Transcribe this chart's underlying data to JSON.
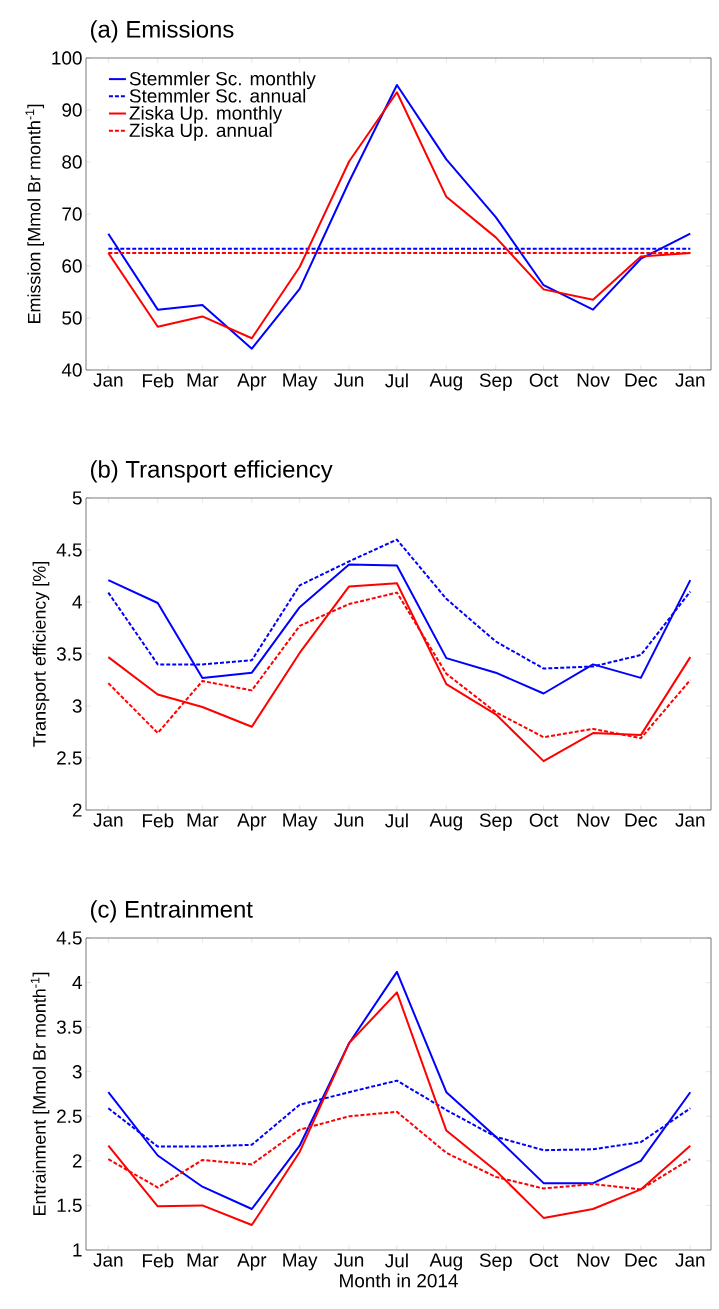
{
  "chart_data": [
    {
      "type": "line",
      "title": "(a) Emissions",
      "ylabel": "Emission [Mmol Br month$^{-1}$]",
      "x": [
        "2014-01-01",
        "2014-02-01",
        "2014-03-01",
        "2014-04-01",
        "2014-05-01",
        "2014-06-01",
        "2014-07-01",
        "2014-08-01",
        "2014-09-01",
        "2014-10-01",
        "2014-11-01",
        "2014-12-01",
        "2015-01-01"
      ],
      "xlim": [
        "2013-12-18",
        "2015-01-14"
      ],
      "xticks": [
        {
          "value": "2014-01-01",
          "label": "Jan"
        },
        {
          "value": "2014-02-01",
          "label": "Feb"
        },
        {
          "value": "2014-03-01",
          "label": "Mar"
        },
        {
          "value": "2014-04-01",
          "label": "Apr"
        },
        {
          "value": "2014-05-01",
          "label": "May"
        },
        {
          "value": "2014-06-01",
          "label": "Jun"
        },
        {
          "value": "2014-07-01",
          "label": "Jul"
        },
        {
          "value": "2014-08-01",
          "label": "Aug"
        },
        {
          "value": "2014-09-01",
          "label": "Sep"
        },
        {
          "value": "2014-10-01",
          "label": "Oct"
        },
        {
          "value": "2014-11-01",
          "label": "Nov"
        },
        {
          "value": "2014-12-01",
          "label": "Dec"
        },
        {
          "value": "2015-01-01",
          "label": "Jan"
        }
      ],
      "ylim": [
        40,
        100
      ],
      "yticks": [
        40,
        50,
        60,
        70,
        80,
        90,
        100
      ],
      "grid": false,
      "legend": "top left",
      "series": [
        {
          "name": "Stemmler Sc. monthly",
          "color": "#0000ff",
          "line_style": "solid",
          "values": [
            66.2,
            51.6,
            52.5,
            44.1,
            55.6,
            76.2,
            94.8,
            80.5,
            69.4,
            56.3,
            51.6,
            61.4,
            66.2
          ]
        },
        {
          "name": "Stemmler Sc. annual",
          "color": "#0000ff",
          "line_style": "dashed",
          "values": [
            63.3,
            63.3,
            63.3,
            63.3,
            63.3,
            63.3,
            63.3,
            63.3,
            63.3,
            63.3,
            63.3,
            63.3,
            63.3
          ]
        },
        {
          "name": "Ziska Up. monthly",
          "color": "#ff0000",
          "line_style": "solid",
          "values": [
            62.5,
            48.3,
            50.3,
            46.1,
            59.8,
            80.1,
            93.4,
            73.3,
            65.5,
            55.5,
            53.5,
            61.8,
            62.5
          ]
        },
        {
          "name": "Ziska Up. annual",
          "color": "#ff0000",
          "line_style": "dashed",
          "values": [
            62.5,
            62.5,
            62.5,
            62.5,
            62.5,
            62.5,
            62.5,
            62.5,
            62.5,
            62.5,
            62.5,
            62.5,
            62.5
          ]
        }
      ]
    },
    {
      "type": "line",
      "title": "(b) Transport efficiency",
      "ylabel": "Transport efficiency [%]",
      "x": [
        "2014-01-01",
        "2014-02-01",
        "2014-03-01",
        "2014-04-01",
        "2014-05-01",
        "2014-06-01",
        "2014-07-01",
        "2014-08-01",
        "2014-09-01",
        "2014-10-01",
        "2014-11-01",
        "2014-12-01",
        "2015-01-01"
      ],
      "xlim": [
        "2013-12-18",
        "2015-01-14"
      ],
      "xticks": [
        {
          "value": "2014-01-01",
          "label": "Jan"
        },
        {
          "value": "2014-02-01",
          "label": "Feb"
        },
        {
          "value": "2014-03-01",
          "label": "Mar"
        },
        {
          "value": "2014-04-01",
          "label": "Apr"
        },
        {
          "value": "2014-05-01",
          "label": "May"
        },
        {
          "value": "2014-06-01",
          "label": "Jun"
        },
        {
          "value": "2014-07-01",
          "label": "Jul"
        },
        {
          "value": "2014-08-01",
          "label": "Aug"
        },
        {
          "value": "2014-09-01",
          "label": "Sep"
        },
        {
          "value": "2014-10-01",
          "label": "Oct"
        },
        {
          "value": "2014-11-01",
          "label": "Nov"
        },
        {
          "value": "2014-12-01",
          "label": "Dec"
        },
        {
          "value": "2015-01-01",
          "label": "Jan"
        }
      ],
      "ylim": [
        2,
        5
      ],
      "yticks": [
        2,
        2.5,
        3,
        3.5,
        4,
        4.5,
        5
      ],
      "grid": false,
      "series": [
        {
          "color": "#0000ff",
          "line_style": "solid",
          "values": [
            4.21,
            3.99,
            3.27,
            3.32,
            3.95,
            4.36,
            4.35,
            3.46,
            3.32,
            3.12,
            3.4,
            3.27,
            4.21
          ]
        },
        {
          "color": "#0000ff",
          "line_style": "dashed",
          "values": [
            4.09,
            3.4,
            3.4,
            3.44,
            4.16,
            4.39,
            4.6,
            4.03,
            3.62,
            3.36,
            3.38,
            3.49,
            4.1
          ]
        },
        {
          "color": "#ff0000",
          "line_style": "solid",
          "values": [
            3.47,
            3.11,
            2.99,
            2.8,
            3.51,
            4.15,
            4.18,
            3.21,
            2.92,
            2.47,
            2.74,
            2.72,
            3.47
          ]
        },
        {
          "color": "#ff0000",
          "line_style": "dashed",
          "values": [
            3.22,
            2.74,
            3.24,
            3.15,
            3.77,
            3.98,
            4.09,
            3.31,
            2.94,
            2.7,
            2.78,
            2.69,
            3.25
          ]
        }
      ]
    },
    {
      "type": "line",
      "title": "(c) Entrainment",
      "ylabel": "Entrainment [Mmol Br month$^{-1}$]",
      "xlabel": "Month in 2014",
      "x": [
        "2014-01-01",
        "2014-02-01",
        "2014-03-01",
        "2014-04-01",
        "2014-05-01",
        "2014-06-01",
        "2014-07-01",
        "2014-08-01",
        "2014-09-01",
        "2014-10-01",
        "2014-11-01",
        "2014-12-01",
        "2015-01-01"
      ],
      "xlim": [
        "2013-12-18",
        "2015-01-14"
      ],
      "xticks": [
        {
          "value": "2014-01-01",
          "label": "Jan"
        },
        {
          "value": "2014-02-01",
          "label": "Feb"
        },
        {
          "value": "2014-03-01",
          "label": "Mar"
        },
        {
          "value": "2014-04-01",
          "label": "Apr"
        },
        {
          "value": "2014-05-01",
          "label": "May"
        },
        {
          "value": "2014-06-01",
          "label": "Jun"
        },
        {
          "value": "2014-07-01",
          "label": "Jul"
        },
        {
          "value": "2014-08-01",
          "label": "Aug"
        },
        {
          "value": "2014-09-01",
          "label": "Sep"
        },
        {
          "value": "2014-10-01",
          "label": "Oct"
        },
        {
          "value": "2014-11-01",
          "label": "Nov"
        },
        {
          "value": "2014-12-01",
          "label": "Dec"
        },
        {
          "value": "2015-01-01",
          "label": "Jan"
        }
      ],
      "ylim": [
        1,
        4.5
      ],
      "yticks": [
        1,
        1.5,
        2,
        2.5,
        3,
        3.5,
        4,
        4.5
      ],
      "grid": false,
      "series": [
        {
          "color": "#0000ff",
          "line_style": "solid",
          "values": [
            2.77,
            2.06,
            1.71,
            1.46,
            2.17,
            3.32,
            4.12,
            2.77,
            2.27,
            1.75,
            1.75,
            2.0,
            2.77
          ]
        },
        {
          "color": "#0000ff",
          "line_style": "dashed",
          "values": [
            2.59,
            2.16,
            2.16,
            2.18,
            2.63,
            2.77,
            2.9,
            2.57,
            2.27,
            2.12,
            2.13,
            2.21,
            2.59
          ]
        },
        {
          "color": "#ff0000",
          "line_style": "solid",
          "values": [
            2.17,
            1.49,
            1.5,
            1.28,
            2.1,
            3.32,
            3.89,
            2.34,
            1.89,
            1.36,
            1.46,
            1.68,
            2.17
          ]
        },
        {
          "color": "#ff0000",
          "line_style": "dashed",
          "values": [
            2.02,
            1.7,
            2.01,
            1.96,
            2.35,
            2.5,
            2.55,
            2.09,
            1.82,
            1.69,
            1.74,
            1.68,
            2.02
          ]
        }
      ]
    }
  ]
}
